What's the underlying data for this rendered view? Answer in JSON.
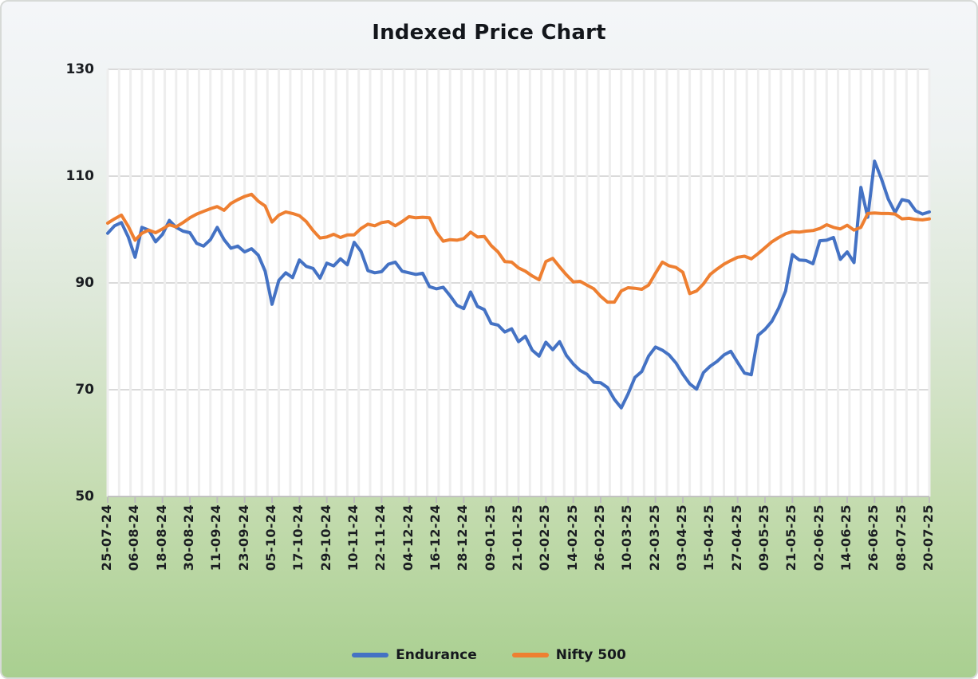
{
  "title": "Indexed Price Chart",
  "colors": {
    "endurance": "#4472c4",
    "nifty500": "#ee7f31",
    "grid_vertical": "#eeeeee",
    "grid_horizontal": "#dadada",
    "axis": "#c2c2c2",
    "tick": "#bdbdbd",
    "text": "#1a1d21",
    "plot_bg": "#ffffff",
    "bg_top": "#f4f6f9",
    "bg_bottom": "#a9cf90"
  },
  "legend": {
    "items": [
      {
        "label": "Endurance",
        "color": "#4472c4"
      },
      {
        "label": "Nifty 500",
        "color": "#ee7f31"
      }
    ]
  },
  "chart_data": {
    "type": "line",
    "title": "Indexed Price Chart",
    "ylabel": "",
    "xlabel": "",
    "ylim": [
      50,
      130
    ],
    "y_ticks": [
      130,
      110,
      90,
      70,
      50
    ],
    "grid": "on",
    "legend_position": "bottom",
    "x_days_span": 360,
    "x_tick_interval_days": 12,
    "v_grid_interval_days": 5,
    "point_interval_days": 3,
    "x_tick_labels": [
      "25-07-24",
      "06-08-24",
      "18-08-24",
      "30-08-24",
      "11-09-24",
      "23-09-24",
      "05-10-24",
      "17-10-24",
      "29-10-24",
      "10-11-24",
      "22-11-24",
      "04-12-24",
      "16-12-24",
      "28-12-24",
      "09-01-25",
      "21-01-25",
      "02-02-25",
      "14-02-25",
      "26-02-25",
      "10-03-25",
      "22-03-25",
      "03-04-25",
      "15-04-25",
      "27-04-25",
      "09-05-25",
      "21-05-25",
      "02-06-25",
      "14-06-25",
      "26-06-25",
      "08-07-25",
      "20-07-25"
    ],
    "series": [
      {
        "name": "Endurance",
        "color": "#4472c4",
        "values": [
          99.3,
          100.7,
          101.3,
          98.6,
          94.8,
          100.4,
          99.9,
          97.7,
          99.1,
          101.7,
          100.4,
          99.7,
          99.4,
          97.4,
          96.9,
          98.1,
          100.4,
          98.1,
          96.5,
          96.9,
          95.8,
          96.4,
          95.2,
          92.2,
          86.0,
          90.5,
          91.9,
          91.0,
          94.3,
          93.1,
          92.7,
          90.9,
          93.7,
          93.2,
          94.5,
          93.4,
          97.6,
          95.9,
          92.3,
          91.9,
          92.1,
          93.5,
          93.9,
          92.2,
          91.9,
          91.6,
          91.8,
          89.3,
          88.9,
          89.2,
          87.6,
          85.8,
          85.2,
          88.3,
          85.6,
          85.0,
          82.4,
          82.1,
          80.8,
          81.4,
          79.0,
          80.0,
          77.4,
          76.3,
          78.9,
          77.5,
          79.0,
          76.4,
          74.8,
          73.6,
          72.9,
          71.4,
          71.3,
          70.4,
          68.2,
          66.6,
          69.2,
          72.3,
          73.4,
          76.3,
          78.0,
          77.4,
          76.5,
          75.0,
          72.9,
          71.1,
          70.1,
          73.2,
          74.4,
          75.3,
          76.5,
          77.2,
          75.1,
          73.1,
          72.8,
          80.2,
          81.3,
          82.8,
          85.3,
          88.5,
          95.3,
          94.3,
          94.2,
          93.6,
          97.9,
          98.0,
          98.5,
          94.4,
          95.8,
          93.8,
          107.9,
          102.3,
          112.8,
          109.5,
          105.7,
          103.2,
          105.6,
          105.3,
          103.5,
          102.9,
          103.3
        ]
      },
      {
        "name": "Nifty 500",
        "color": "#ee7f31",
        "values": [
          101.2,
          102.0,
          102.7,
          100.6,
          98.0,
          99.3,
          99.9,
          99.4,
          100.1,
          100.9,
          100.5,
          101.3,
          102.2,
          102.9,
          103.4,
          103.9,
          104.3,
          103.6,
          104.9,
          105.6,
          106.2,
          106.6,
          105.3,
          104.4,
          101.4,
          102.7,
          103.3,
          103.0,
          102.6,
          101.5,
          99.8,
          98.4,
          98.6,
          99.1,
          98.5,
          99.0,
          99.0,
          100.2,
          101.0,
          100.7,
          101.3,
          101.5,
          100.7,
          101.5,
          102.4,
          102.2,
          102.3,
          102.2,
          99.5,
          97.8,
          98.1,
          98.0,
          98.3,
          99.5,
          98.6,
          98.7,
          97.0,
          95.8,
          94.0,
          93.9,
          92.8,
          92.2,
          91.3,
          90.6,
          94.0,
          94.6,
          93.0,
          91.5,
          90.2,
          90.3,
          89.6,
          88.9,
          87.5,
          86.4,
          86.4,
          88.5,
          89.1,
          89.0,
          88.8,
          89.6,
          91.8,
          93.9,
          93.2,
          92.9,
          92.0,
          88.0,
          88.5,
          89.8,
          91.6,
          92.6,
          93.5,
          94.2,
          94.8,
          95.0,
          94.5,
          95.5,
          96.6,
          97.7,
          98.5,
          99.2,
          99.6,
          99.5,
          99.7,
          99.8,
          100.2,
          100.9,
          100.4,
          100.1,
          100.8,
          99.9,
          100.4,
          103.0,
          103.1,
          103.0,
          103.0,
          102.9,
          102.0,
          102.1,
          101.9,
          101.8,
          102.0
        ]
      }
    ]
  }
}
